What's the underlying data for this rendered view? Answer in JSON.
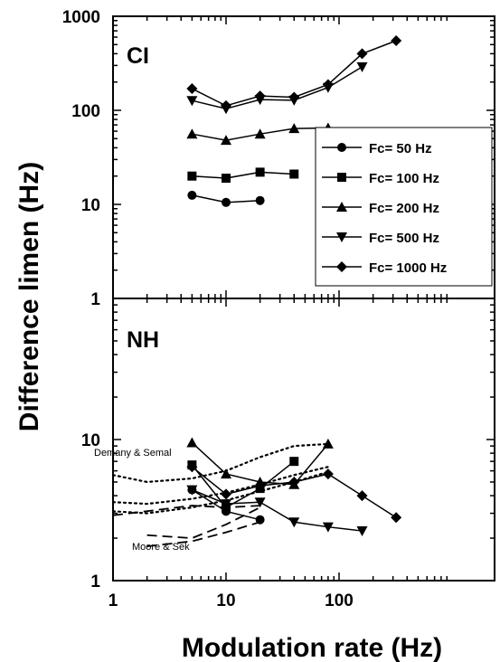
{
  "chart_data": {
    "type": "line",
    "xlabel": "Modulation rate (Hz)",
    "ylabel": "Difference limen (Hz)",
    "x_scale": "log",
    "y_scale": "log",
    "xlim": [
      1,
      1000
    ],
    "x_ticks": [
      "1",
      "10",
      "100"
    ],
    "legend_position": "right, inside CI panel",
    "panels": [
      {
        "label": "CI",
        "ylim": [
          1,
          1000
        ],
        "y_ticks": [
          "1",
          "10",
          "100",
          "1000"
        ],
        "series": [
          {
            "name": "Fc= 50 Hz",
            "marker": "circle",
            "x": [
              5,
              10,
              20
            ],
            "y": [
              12.5,
              10.5,
              11
            ]
          },
          {
            "name": "Fc= 100 Hz",
            "marker": "square",
            "x": [
              5,
              10,
              20,
              40
            ],
            "y": [
              20,
              19,
              22,
              21
            ]
          },
          {
            "name": "Fc= 200 Hz",
            "marker": "triangle-up",
            "x": [
              5,
              10,
              20,
              40,
              80
            ],
            "y": [
              56,
              48,
              56,
              64,
              65
            ]
          },
          {
            "name": "Fc= 500 Hz",
            "marker": "triangle-down",
            "x": [
              5,
              10,
              20,
              40,
              80,
              160
            ],
            "y": [
              127,
              104,
              130,
              128,
              175,
              290
            ]
          },
          {
            "name": "Fc= 1000 Hz",
            "marker": "diamond",
            "x": [
              5,
              10,
              20,
              40,
              80,
              160,
              320
            ],
            "y": [
              170,
              112,
              142,
              138,
              188,
              400,
              550
            ]
          }
        ]
      },
      {
        "label": "NH",
        "ylim": [
          1,
          100
        ],
        "y_ticks": [
          "1",
          "10"
        ],
        "series": [
          {
            "marker": "circle",
            "x": [
              5,
              10,
              20
            ],
            "y": [
              4.4,
              3.1,
              2.7
            ]
          },
          {
            "marker": "square",
            "x": [
              5,
              10,
              20,
              40
            ],
            "y": [
              6.6,
              3.3,
              4.5,
              7.0
            ]
          },
          {
            "marker": "triangle-up",
            "x": [
              5,
              10,
              20,
              40,
              80
            ],
            "y": [
              9.5,
              5.7,
              5.0,
              4.8,
              9.3
            ]
          },
          {
            "marker": "triangle-down",
            "x": [
              5,
              10,
              20,
              40,
              80,
              160
            ],
            "y": [
              4.4,
              3.5,
              3.6,
              2.6,
              2.4,
              2.25
            ]
          },
          {
            "marker": "diamond",
            "x": [
              5,
              10,
              20,
              40,
              80,
              160,
              320
            ],
            "y": [
              6.4,
              4.1,
              4.7,
              5.0,
              5.7,
              4.0,
              2.8
            ]
          }
        ],
        "reference_curves": [
          {
            "style": "dotted",
            "x": [
              1,
              2,
              5,
              10,
              20,
              40,
              80
            ],
            "y": [
              5.6,
              5.0,
              5.3,
              6.0,
              7.5,
              9.0,
              9.3
            ]
          },
          {
            "style": "dotted",
            "x": [
              1,
              2,
              5,
              10,
              20,
              40,
              80
            ],
            "y": [
              3.6,
              3.5,
              3.8,
              4.2,
              4.8,
              5.6,
              6.4
            ]
          },
          {
            "style": "dotted",
            "x": [
              1,
              2,
              5,
              10,
              20,
              40,
              80
            ],
            "y": [
              3.1,
              3.0,
              3.3,
              3.7,
              4.3,
              5.0,
              5.9
            ]
          },
          {
            "style": "dashed",
            "x": [
              2,
              5,
              10,
              20
            ],
            "y": [
              2.1,
              2.0,
              2.5,
              3.3
            ]
          },
          {
            "style": "dashed",
            "x": [
              2,
              5,
              10,
              20
            ],
            "y": [
              1.75,
              1.9,
              2.2,
              2.6
            ]
          },
          {
            "style": "dashed",
            "x": [
              1,
              5,
              10,
              20
            ],
            "y": [
              2.9,
              3.4,
              3.3,
              3.4
            ]
          }
        ],
        "annotations": [
          "Demany & Semal",
          "Moore & Sek"
        ]
      }
    ]
  }
}
